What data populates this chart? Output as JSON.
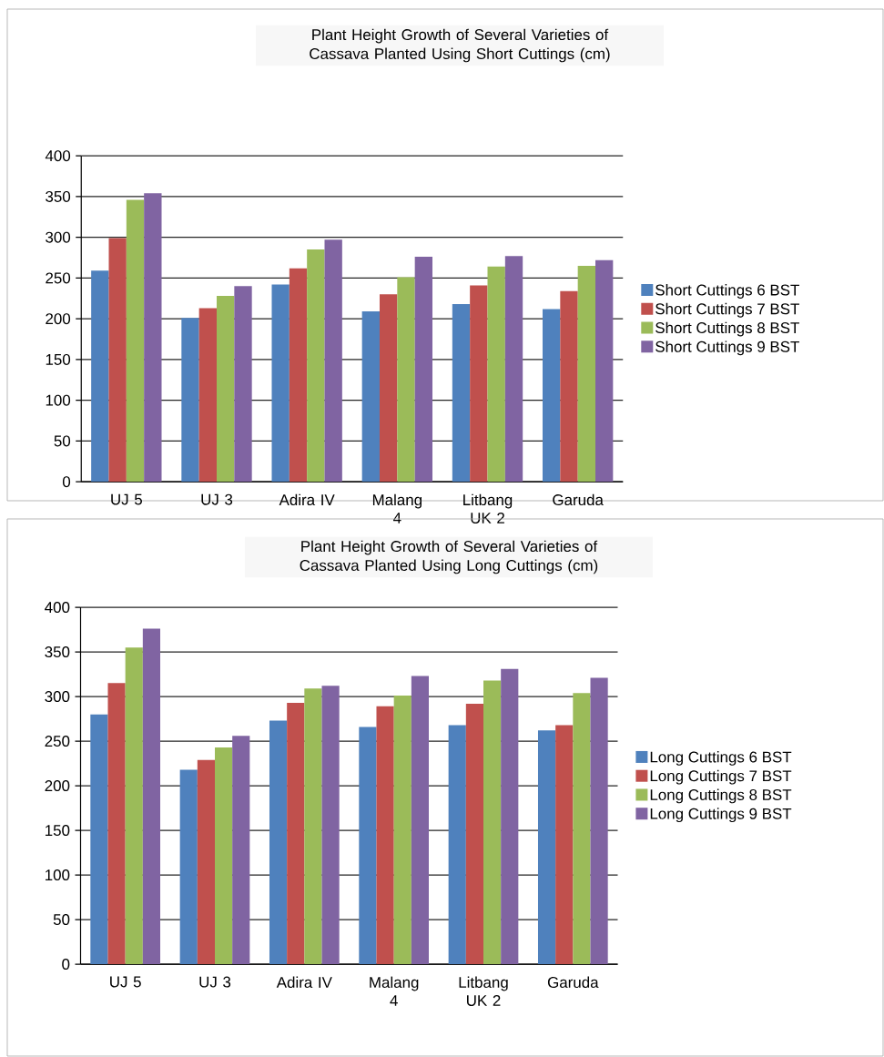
{
  "chart_data": [
    {
      "type": "bar",
      "title": "Plant Height Growth of Several Varieties of Cassava Planted Using Short Cuttings (cm)",
      "categories": [
        "UJ 5",
        "UJ 3",
        "Adira IV",
        "Malang 4",
        "Litbang UK 2",
        "Garuda"
      ],
      "series": [
        {
          "name": "Short Cuttings 6 BST",
          "color": "#4f81bd",
          "values": [
            259,
            201,
            242,
            209,
            218,
            212
          ]
        },
        {
          "name": "Short Cuttings 7 BST",
          "color": "#c0504d",
          "values": [
            299,
            213,
            262,
            230,
            241,
            234
          ]
        },
        {
          "name": "Short Cuttings 8 BST",
          "color": "#9bbb59",
          "values": [
            346,
            228,
            285,
            251,
            264,
            265
          ]
        },
        {
          "name": "Short Cuttings 9 BST",
          "color": "#8064a2",
          "values": [
            354,
            240,
            297,
            276,
            277,
            272
          ]
        }
      ],
      "ylim": [
        0,
        400
      ],
      "yticks": [
        0,
        50,
        100,
        150,
        200,
        250,
        300,
        350,
        400
      ],
      "grid": "y",
      "legend": "right"
    },
    {
      "type": "bar",
      "title": "Plant Height Growth of Several Varieties of Cassava Planted Using Long Cuttings (cm)",
      "categories": [
        "UJ 5",
        "UJ 3",
        "Adira IV",
        "Malang 4",
        "Litbang UK 2",
        "Garuda"
      ],
      "series": [
        {
          "name": "Long Cuttings 6 BST",
          "color": "#4f81bd",
          "values": [
            280,
            218,
            273,
            266,
            268,
            262
          ]
        },
        {
          "name": "Long Cuttings 7 BST",
          "color": "#c0504d",
          "values": [
            315,
            229,
            293,
            289,
            292,
            268
          ]
        },
        {
          "name": "Long Cuttings 8 BST",
          "color": "#9bbb59",
          "values": [
            355,
            243,
            309,
            301,
            318,
            304
          ]
        },
        {
          "name": "Long Cuttings 9 BST",
          "color": "#8064a2",
          "values": [
            376,
            256,
            312,
            323,
            331,
            321
          ]
        }
      ],
      "ylim": [
        0,
        400
      ],
      "yticks": [
        0,
        50,
        100,
        150,
        200,
        250,
        300,
        350,
        400
      ],
      "grid": "y",
      "legend": "right"
    }
  ]
}
